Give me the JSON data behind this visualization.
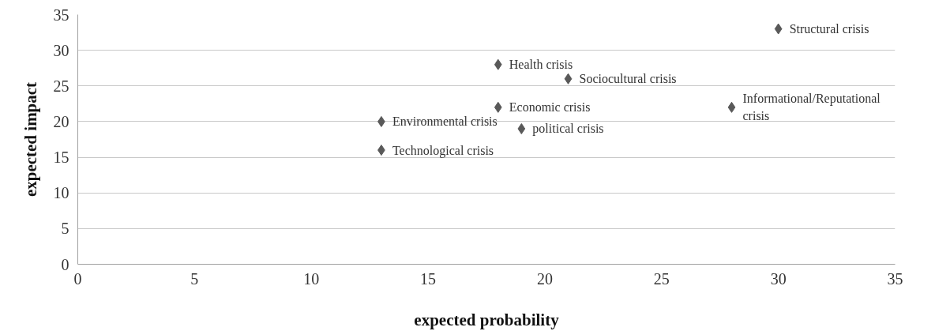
{
  "chart_data": {
    "type": "scatter",
    "xlabel": "expected probability",
    "ylabel": "expected impact",
    "x": [
      30,
      18,
      21,
      18,
      28,
      13,
      19,
      13
    ],
    "series": [
      {
        "color": "#595959",
        "values": [
          33,
          28,
          26,
          22,
          22,
          20,
          19,
          16
        ]
      }
    ],
    "annotations": [
      {
        "text": "Structural crisis",
        "x": 30,
        "y": 33
      },
      {
        "text": "Health crisis",
        "x": 18,
        "y": 28
      },
      {
        "text": "Sociocultural crisis",
        "x": 21,
        "y": 26
      },
      {
        "text": "Economic crisis",
        "x": 18,
        "y": 22
      },
      {
        "text": "Informational/Reputational crisis",
        "x": 28,
        "y": 22
      },
      {
        "text": "Environmental crisis",
        "x": 13,
        "y": 20
      },
      {
        "text": "political crisis",
        "x": 19,
        "y": 19
      },
      {
        "text": "Technological crisis",
        "x": 13,
        "y": 16
      }
    ],
    "xlim": [
      0,
      35
    ],
    "ylim": [
      0,
      35
    ],
    "xticks": [
      0,
      5,
      10,
      15,
      20,
      25,
      30,
      35
    ],
    "yticks": [
      0,
      5,
      10,
      15,
      20,
      25,
      30,
      35
    ],
    "grid": "y",
    "marker": "diamond"
  }
}
